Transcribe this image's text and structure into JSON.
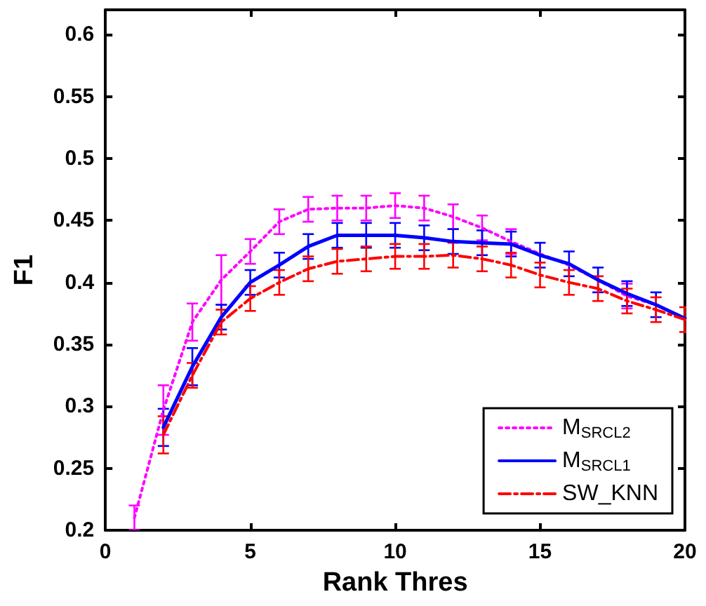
{
  "chart_data": {
    "type": "line",
    "xlabel": "Rank Thres",
    "ylabel": "F1",
    "x": [
      1,
      2,
      3,
      4,
      5,
      6,
      7,
      8,
      9,
      10,
      11,
      12,
      13,
      14,
      15,
      16,
      17,
      18,
      19,
      20
    ],
    "series": [
      {
        "name": "M$_{SRCL2}$",
        "color": "#ff00ff",
        "line_style": "dotted",
        "values": [
          0.21,
          0.297,
          0.368,
          0.402,
          0.425,
          0.449,
          0.459,
          0.46,
          0.46,
          0.462,
          0.46,
          0.453,
          0.444,
          0.433,
          0.423,
          0.414,
          0.402,
          0.389,
          0.382,
          0.371
        ],
        "errors": [
          0.01,
          0.02,
          0.015,
          0.02,
          0.01,
          0.01,
          0.01,
          0.01,
          0.01,
          0.01,
          0.01,
          0.01,
          0.01,
          0.01,
          null,
          null,
          null,
          0.01,
          null,
          null
        ]
      },
      {
        "name": "M$_{SRCL1}$",
        "color": "#0000ff",
        "line_style": "solid",
        "values": [
          null,
          0.283,
          0.332,
          0.372,
          0.4,
          0.414,
          0.429,
          0.438,
          0.438,
          0.438,
          0.436,
          0.433,
          0.432,
          0.431,
          0.422,
          0.415,
          0.402,
          0.391,
          0.382,
          0.371
        ],
        "errors": [
          null,
          0.015,
          0.015,
          0.01,
          0.01,
          0.01,
          0.01,
          0.01,
          0.01,
          0.01,
          0.01,
          0.01,
          0.01,
          0.01,
          0.01,
          0.01,
          0.01,
          0.01,
          0.01,
          null
        ]
      },
      {
        "name": "SW_KNN",
        "color": "#ff0000",
        "line_style": "dashed",
        "values": [
          null,
          0.277,
          0.325,
          0.368,
          0.387,
          0.4,
          0.411,
          0.417,
          0.419,
          0.421,
          0.421,
          0.422,
          0.419,
          0.414,
          0.406,
          0.4,
          0.395,
          0.385,
          0.378,
          0.37
        ],
        "errors": [
          null,
          0.015,
          0.01,
          0.01,
          0.01,
          0.01,
          0.01,
          0.01,
          0.01,
          0.01,
          0.01,
          0.01,
          0.01,
          0.01,
          0.01,
          0.01,
          0.01,
          0.01,
          0.01,
          0.01
        ]
      }
    ],
    "xlim": [
      0,
      20
    ],
    "xticks": [
      0,
      5,
      10,
      15,
      20
    ],
    "ylim": [
      0.2,
      0.62
    ],
    "yticks": [
      0.2,
      0.25,
      0.3,
      0.35,
      0.4,
      0.45,
      0.5,
      0.55,
      0.6
    ],
    "grid": false,
    "legend": "bottom right",
    "marker": "none"
  }
}
